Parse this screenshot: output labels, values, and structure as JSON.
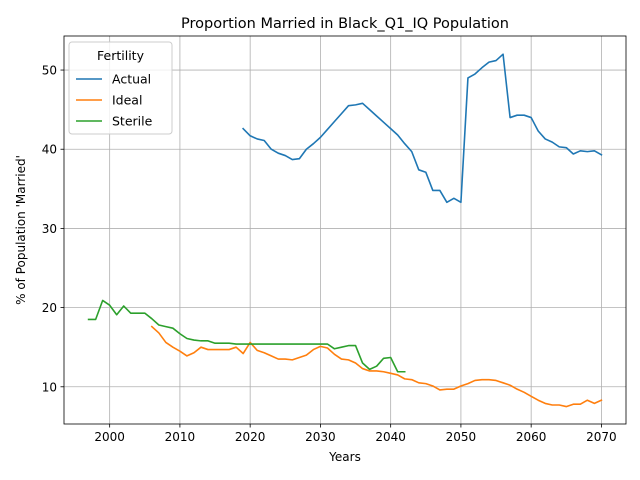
{
  "chart_data": {
    "type": "line",
    "title": "Proportion Married in Black_Q1_IQ Population",
    "xlabel": "Years",
    "ylabel": "% of Population 'Married'",
    "xlim": [
      1993.5,
      2073.5
    ],
    "ylim": [
      5.3,
      54.3
    ],
    "xticks": [
      2000,
      2010,
      2020,
      2030,
      2040,
      2050,
      2060,
      2070
    ],
    "yticks": [
      10,
      20,
      30,
      40,
      50
    ],
    "grid": true,
    "legend": {
      "title": "Fertility",
      "placement": "top-left"
    },
    "series": [
      {
        "name": "Actual",
        "color": "#1f77b4",
        "x": [
          2019,
          2020,
          2021,
          2022,
          2023,
          2024,
          2025,
          2026,
          2027,
          2028,
          2029,
          2030,
          2031,
          2032,
          2033,
          2034,
          2035,
          2036,
          2037,
          2038,
          2039,
          2040,
          2041,
          2042,
          2043,
          2044,
          2045,
          2046,
          2047,
          2048,
          2049,
          2050,
          2051,
          2052,
          2053,
          2054,
          2055,
          2056,
          2057,
          2058,
          2059,
          2060,
          2061,
          2062,
          2063,
          2064,
          2065,
          2066,
          2067,
          2068,
          2069,
          2070
        ],
        "y": [
          42.6,
          41.7,
          41.3,
          41.1,
          40.0,
          39.5,
          39.2,
          38.7,
          38.8,
          40.0,
          40.7,
          41.5,
          42.5,
          43.5,
          44.5,
          45.5,
          45.6,
          45.8,
          45.0,
          44.2,
          43.4,
          42.6,
          41.8,
          40.7,
          39.7,
          37.4,
          37.1,
          34.8,
          34.8,
          33.3,
          33.8,
          33.3,
          49.0,
          49.5,
          50.3,
          51.0,
          51.2,
          52.0,
          44.0,
          44.3,
          44.3,
          44.0,
          42.3,
          41.3,
          40.9,
          40.3,
          40.2,
          39.4,
          39.8,
          39.7,
          39.8,
          39.3
        ]
      },
      {
        "name": "Ideal",
        "color": "#ff7f0e",
        "x": [
          2006,
          2007,
          2008,
          2009,
          2010,
          2011,
          2012,
          2013,
          2014,
          2015,
          2016,
          2017,
          2018,
          2019,
          2020,
          2021,
          2022,
          2023,
          2024,
          2025,
          2026,
          2027,
          2028,
          2029,
          2030,
          2031,
          2032,
          2033,
          2034,
          2035,
          2036,
          2037,
          2038,
          2039,
          2040,
          2041,
          2042,
          2043,
          2044,
          2045,
          2046,
          2047,
          2048,
          2049,
          2050,
          2051,
          2052,
          2053,
          2054,
          2055,
          2056,
          2057,
          2058,
          2059,
          2060,
          2061,
          2062,
          2063,
          2064,
          2065,
          2066,
          2067,
          2068,
          2069,
          2070
        ],
        "y": [
          17.6,
          16.8,
          15.6,
          15.0,
          14.5,
          13.9,
          14.3,
          15.0,
          14.7,
          14.7,
          14.7,
          14.7,
          15.0,
          14.2,
          15.6,
          14.6,
          14.3,
          13.9,
          13.5,
          13.5,
          13.4,
          13.7,
          14.0,
          14.7,
          15.1,
          14.9,
          14.1,
          13.5,
          13.4,
          13.0,
          12.3,
          12.0,
          12.0,
          11.9,
          11.7,
          11.5,
          11.0,
          10.9,
          10.5,
          10.4,
          10.1,
          9.6,
          9.7,
          9.7,
          10.1,
          10.4,
          10.8,
          10.9,
          10.9,
          10.8,
          10.5,
          10.2,
          9.7,
          9.3,
          8.8,
          8.3,
          7.9,
          7.7,
          7.7,
          7.5,
          7.8,
          7.8,
          8.3,
          7.9,
          8.3
        ]
      },
      {
        "name": "Sterile",
        "color": "#2ca02c",
        "x": [
          1997,
          1998,
          1999,
          2000,
          2001,
          2002,
          2003,
          2004,
          2005,
          2006,
          2007,
          2008,
          2009,
          2010,
          2011,
          2012,
          2013,
          2014,
          2015,
          2016,
          2017,
          2018,
          2019,
          2020,
          2021,
          2022,
          2023,
          2024,
          2025,
          2026,
          2027,
          2028,
          2029,
          2030,
          2031,
          2032,
          2033,
          2034,
          2035,
          2036,
          2037,
          2038,
          2039,
          2040,
          2041,
          2042
        ],
        "y": [
          18.5,
          18.5,
          20.9,
          20.3,
          19.1,
          20.2,
          19.3,
          19.3,
          19.3,
          18.6,
          17.8,
          17.6,
          17.4,
          16.7,
          16.1,
          15.9,
          15.8,
          15.8,
          15.5,
          15.5,
          15.5,
          15.4,
          15.4,
          15.4,
          15.4,
          15.4,
          15.4,
          15.4,
          15.4,
          15.4,
          15.4,
          15.4,
          15.4,
          15.4,
          15.4,
          14.8,
          15.0,
          15.2,
          15.2,
          13.0,
          12.2,
          12.6,
          13.6,
          13.7,
          11.9,
          11.9
        ]
      }
    ]
  }
}
